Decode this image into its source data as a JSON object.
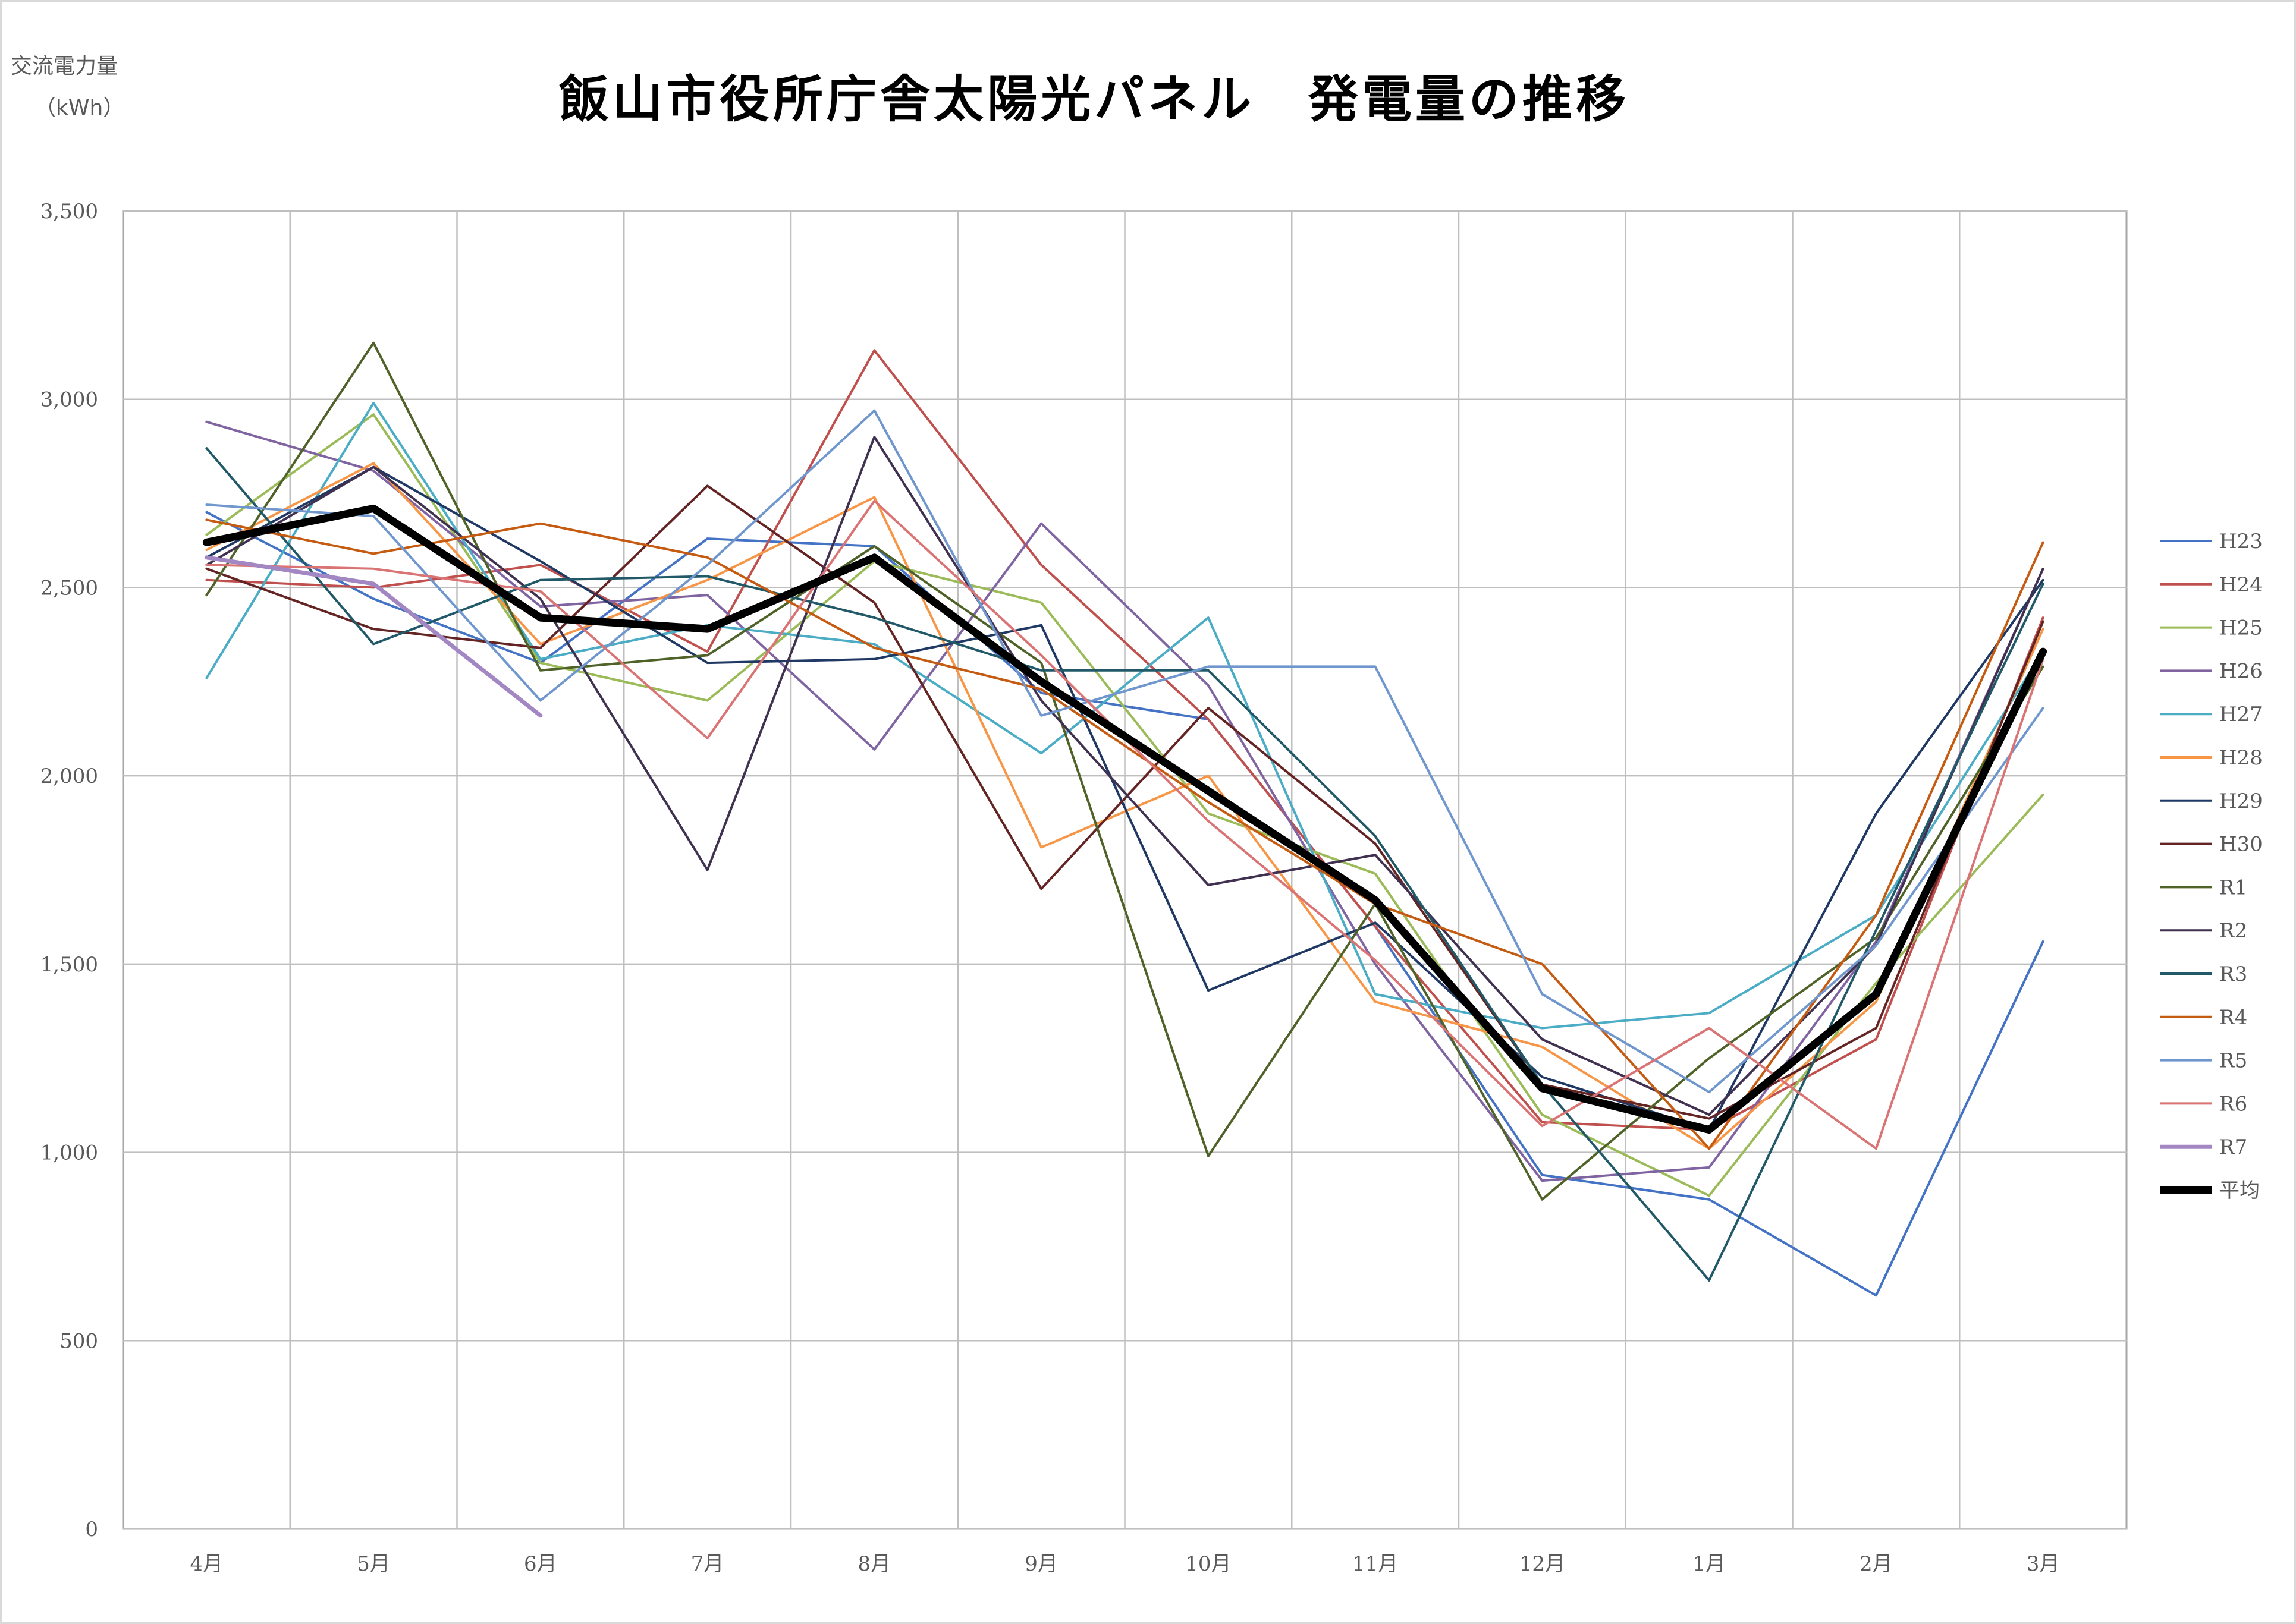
{
  "title": "飯山市役所庁舎太陽光パネル　発電量の推移",
  "ylabel_line1": "交流電力量",
  "ylabel_line2": "（kWh）",
  "chart_data": {
    "type": "line",
    "title": "飯山市役所庁舎太陽光パネル　発電量の推移",
    "ylabel": "交流電力量（kWh）",
    "xlabel": "",
    "ylim": [
      0,
      3500
    ],
    "yticks": [
      0,
      500,
      1000,
      1500,
      2000,
      2500,
      3000,
      3500
    ],
    "ytick_labels": [
      "0",
      "500",
      "1,000",
      "1,500",
      "2,000",
      "2,500",
      "3,000",
      "3,500"
    ],
    "grid": true,
    "legend_position": "right",
    "categories": [
      "4月",
      "5月",
      "6月",
      "7月",
      "8月",
      "9月",
      "10月",
      "11月",
      "12月",
      "1月",
      "2月",
      "3月"
    ],
    "series": [
      {
        "name": "H23",
        "color": "#4472C4",
        "width": 4,
        "values": [
          2700,
          2470,
          2300,
          2630,
          2610,
          2220,
          2150,
          1600,
          940,
          875,
          620,
          1560
        ]
      },
      {
        "name": "H24",
        "color": "#C0504D",
        "width": 4,
        "values": [
          2520,
          2500,
          2560,
          2330,
          3130,
          2560,
          2150,
          1600,
          1080,
          1060,
          1300,
          2420
        ]
      },
      {
        "name": "H25",
        "color": "#9BBB59",
        "width": 4,
        "values": [
          2640,
          2960,
          2300,
          2200,
          2570,
          2460,
          1900,
          1740,
          1100,
          885,
          1450,
          1950
        ]
      },
      {
        "name": "H26",
        "color": "#8064A2",
        "width": 4,
        "values": [
          2940,
          2810,
          2450,
          2480,
          2070,
          2670,
          2240,
          1500,
          925,
          960,
          1560,
          2550
        ]
      },
      {
        "name": "H27",
        "color": "#4BACC6",
        "width": 4,
        "values": [
          2260,
          2990,
          2310,
          2400,
          2350,
          2060,
          2420,
          1420,
          1330,
          1370,
          1630,
          2330
        ]
      },
      {
        "name": "H28",
        "color": "#F79646",
        "width": 4,
        "values": [
          2600,
          2830,
          2350,
          2520,
          2740,
          1810,
          2000,
          1400,
          1280,
          1010,
          1400,
          2390
        ]
      },
      {
        "name": "H29",
        "color": "#1F3864",
        "width": 4,
        "values": [
          2580,
          2820,
          2570,
          2300,
          2310,
          2400,
          1430,
          1610,
          1200,
          1060,
          1900,
          2520
        ]
      },
      {
        "name": "H30",
        "color": "#632423",
        "width": 4,
        "values": [
          2550,
          2390,
          2340,
          2770,
          2460,
          1700,
          2180,
          1820,
          1180,
          1090,
          1330,
          2410
        ]
      },
      {
        "name": "R1",
        "color": "#4F6228",
        "width": 4,
        "values": [
          2480,
          3150,
          2280,
          2320,
          2610,
          2300,
          990,
          1660,
          875,
          1250,
          1570,
          2290
        ]
      },
      {
        "name": "R2",
        "color": "#403151",
        "width": 4,
        "values": [
          2560,
          2820,
          2470,
          1750,
          2900,
          2200,
          1710,
          1790,
          1300,
          1100,
          1550,
          2550
        ]
      },
      {
        "name": "R3",
        "color": "#215968",
        "width": 4,
        "values": [
          2870,
          2350,
          2520,
          2530,
          2420,
          2280,
          2280,
          1840,
          1180,
          660,
          1590,
          2510
        ]
      },
      {
        "name": "R4",
        "color": "#C55A11",
        "width": 4,
        "values": [
          2680,
          2590,
          2670,
          2580,
          2340,
          2230,
          1930,
          1660,
          1500,
          1010,
          1630,
          2620
        ]
      },
      {
        "name": "R5",
        "color": "#6F97CD",
        "width": 4,
        "values": [
          2720,
          2690,
          2200,
          2560,
          2970,
          2160,
          2290,
          2290,
          1420,
          1160,
          1550,
          2180
        ]
      },
      {
        "name": "R6",
        "color": "#DA7474",
        "width": 4,
        "values": [
          2560,
          2550,
          2490,
          2100,
          2730,
          2320,
          1880,
          1510,
          1070,
          1330,
          1010,
          2310
        ]
      },
      {
        "name": "R7",
        "color": "#A287C3",
        "width": 7,
        "values": [
          2580,
          2510,
          2160,
          null,
          null,
          null,
          null,
          null,
          null,
          null,
          null,
          null
        ]
      },
      {
        "name": "平均",
        "color": "#000000",
        "width": 13,
        "values": [
          2620,
          2710,
          2420,
          2390,
          2580,
          2250,
          1960,
          1670,
          1170,
          1060,
          1420,
          2330
        ]
      }
    ]
  }
}
